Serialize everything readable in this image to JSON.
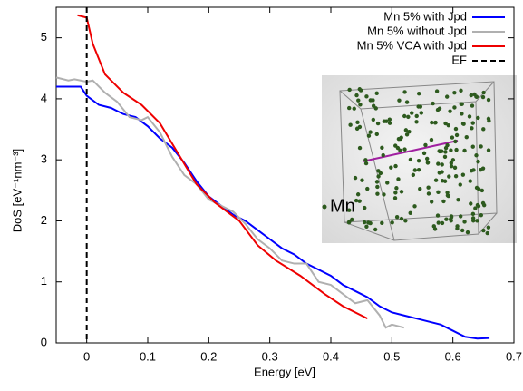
{
  "chart_data": {
    "type": "line",
    "xlabel": "Energy [eV]",
    "ylabel": "DoS [eV⁻¹nm⁻³]",
    "xlim": [
      -0.05,
      0.7
    ],
    "ylim": [
      0,
      5.5
    ],
    "xticks": [
      0,
      0.1,
      0.2,
      0.3,
      0.4,
      0.5,
      0.6,
      0.7
    ],
    "yticks": [
      0,
      1,
      2,
      3,
      4,
      5
    ],
    "legend": "upper right",
    "inset_label": "Mn",
    "series": [
      {
        "name": "Mn 5% with Jpd",
        "color": "#0000ff",
        "x": [
          -0.05,
          -0.01,
          0,
          0.02,
          0.04,
          0.06,
          0.08,
          0.1,
          0.12,
          0.14,
          0.16,
          0.18,
          0.2,
          0.22,
          0.24,
          0.26,
          0.28,
          0.3,
          0.32,
          0.34,
          0.36,
          0.38,
          0.4,
          0.42,
          0.44,
          0.46,
          0.48,
          0.5,
          0.52,
          0.54,
          0.56,
          0.58,
          0.6,
          0.62,
          0.64,
          0.66
        ],
        "values": [
          4.2,
          4.2,
          4.05,
          3.9,
          3.85,
          3.75,
          3.7,
          3.55,
          3.35,
          3.2,
          2.95,
          2.65,
          2.4,
          2.25,
          2.1,
          2.0,
          1.85,
          1.7,
          1.55,
          1.45,
          1.3,
          1.2,
          1.1,
          0.95,
          0.85,
          0.75,
          0.6,
          0.5,
          0.45,
          0.4,
          0.35,
          0.3,
          0.2,
          0.1,
          0.07,
          0.08
        ]
      },
      {
        "name": "Mn 5% without Jpd",
        "color": "#b0b0b0",
        "x": [
          -0.05,
          -0.03,
          -0.02,
          0,
          0.01,
          0.03,
          0.05,
          0.07,
          0.09,
          0.1,
          0.12,
          0.14,
          0.16,
          0.18,
          0.2,
          0.22,
          0.24,
          0.26,
          0.28,
          0.3,
          0.32,
          0.34,
          0.36,
          0.38,
          0.4,
          0.42,
          0.44,
          0.46,
          0.48,
          0.49,
          0.5,
          0.52
        ],
        "values": [
          4.35,
          4.3,
          4.32,
          4.28,
          4.3,
          4.1,
          3.95,
          3.7,
          3.65,
          3.7,
          3.45,
          3.05,
          2.75,
          2.6,
          2.35,
          2.25,
          2.15,
          1.95,
          1.7,
          1.55,
          1.35,
          1.3,
          1.3,
          1.0,
          0.95,
          0.8,
          0.65,
          0.7,
          0.45,
          0.25,
          0.3,
          0.25
        ]
      },
      {
        "name": "Mn 5% VCA with Jpd",
        "color": "#ee0000",
        "x": [
          -0.015,
          0,
          0.01,
          0.03,
          0.06,
          0.09,
          0.12,
          0.15,
          0.18,
          0.21,
          0.25,
          0.28,
          0.31,
          0.35,
          0.39,
          0.42,
          0.45,
          0.46
        ],
        "values": [
          5.37,
          5.33,
          4.9,
          4.4,
          4.1,
          3.9,
          3.6,
          3.1,
          2.6,
          2.3,
          2.0,
          1.6,
          1.35,
          1.1,
          0.8,
          0.6,
          0.45,
          0.4
        ]
      }
    ],
    "vlines": [
      {
        "name": "EF",
        "x": 0,
        "color": "#000000",
        "style": "dashed"
      }
    ]
  }
}
